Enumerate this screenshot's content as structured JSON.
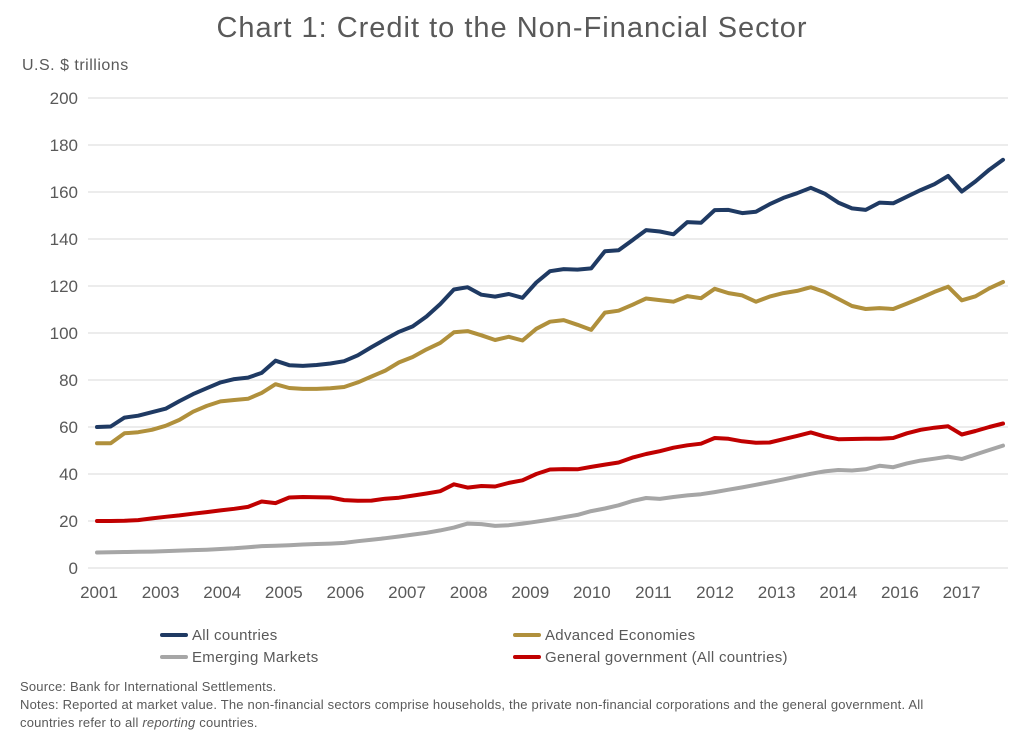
{
  "title": "Chart 1: Credit to the Non-Financial Sector",
  "y_axis_unit_label": "U.S. $ trillions",
  "colors": {
    "axis_text": "#595959",
    "gridline": "#D9D9D9",
    "background": "#FFFFFF"
  },
  "legend": {
    "items": [
      {
        "label": "All countries",
        "color": "#1F3A63"
      },
      {
        "label": "Advanced Economies",
        "color": "#B0903C"
      },
      {
        "label": "Emerging Markets",
        "color": "#A6A6A6"
      },
      {
        "label": "General government (All countries)",
        "color": "#C00000"
      }
    ]
  },
  "footer": {
    "source": "Source: Bank for International Settlements.",
    "notes_before_italic": "Notes: Reported at market value. The non-financial sectors comprise households, the private non-financial corporations and the general government. All countries refer to all ",
    "notes_italic": "reporting",
    "notes_after_italic": " countries."
  },
  "chart_data": {
    "type": "line",
    "title": "Chart 1: Credit to the Non-Financial Sector",
    "ylabel": "U.S. $ trillions",
    "xlabel": "",
    "ylim": [
      0,
      200
    ],
    "yticks": [
      0,
      20,
      40,
      60,
      80,
      100,
      120,
      140,
      160,
      180,
      200
    ],
    "grid": "horizontal",
    "legend_position": "bottom",
    "xtick_labels": [
      "2001",
      "2003",
      "2004",
      "2005",
      "2006",
      "2007",
      "2008",
      "2009",
      "2010",
      "2011",
      "2012",
      "2013",
      "2014",
      "2016",
      "2017"
    ],
    "x": [
      "2001Q1",
      "2001Q2",
      "2001Q3",
      "2001Q4",
      "2002Q1",
      "2002Q2",
      "2002Q3",
      "2002Q4",
      "2003Q1",
      "2003Q2",
      "2003Q3",
      "2003Q4",
      "2004Q1",
      "2004Q2",
      "2004Q3",
      "2004Q4",
      "2005Q1",
      "2005Q2",
      "2005Q3",
      "2005Q4",
      "2006Q1",
      "2006Q2",
      "2006Q3",
      "2006Q4",
      "2007Q1",
      "2007Q2",
      "2007Q3",
      "2007Q4",
      "2008Q1",
      "2008Q2",
      "2008Q3",
      "2008Q4",
      "2009Q1",
      "2009Q2",
      "2009Q3",
      "2009Q4",
      "2010Q1",
      "2010Q2",
      "2010Q3",
      "2010Q4",
      "2011Q1",
      "2011Q2",
      "2011Q3",
      "2011Q4",
      "2012Q1",
      "2012Q2",
      "2012Q3",
      "2012Q4",
      "2013Q1",
      "2013Q2",
      "2013Q3",
      "2013Q4",
      "2014Q1",
      "2014Q2",
      "2014Q3",
      "2014Q4",
      "2015Q1",
      "2015Q2",
      "2015Q3",
      "2015Q4",
      "2016Q1",
      "2016Q2",
      "2016Q3",
      "2016Q4",
      "2017Q1",
      "2017Q2",
      "2017Q3"
    ],
    "series": [
      {
        "name": "All countries",
        "color": "#1F3A63",
        "values": [
          60.0,
          60.2,
          64.0,
          64.8,
          66.3,
          67.8,
          71.0,
          74.0,
          76.5,
          79.0,
          80.4,
          81.0,
          83.0,
          88.2,
          86.3,
          86.0,
          86.4,
          87.0,
          88.0,
          90.5,
          94.0,
          97.3,
          100.5,
          102.8,
          107.0,
          112.3,
          118.5,
          119.5,
          116.3,
          115.5,
          116.6,
          115.0,
          121.5,
          126.3,
          127.2,
          127.0,
          127.5,
          134.8,
          135.2,
          139.5,
          143.8,
          143.2,
          142.0,
          147.2,
          146.9,
          152.3,
          152.4,
          151.0,
          151.6,
          154.8,
          157.5,
          159.5,
          161.8,
          159.3,
          155.5,
          153.0,
          152.4,
          155.5,
          155.2,
          158.0,
          160.8,
          163.3,
          166.8,
          160.2,
          164.5,
          169.5,
          173.7
        ]
      },
      {
        "name": "Advanced Economies",
        "color": "#B0903C",
        "values": [
          53.1,
          53.1,
          57.3,
          57.8,
          58.8,
          60.5,
          63.0,
          66.5,
          69.0,
          70.9,
          71.5,
          72.0,
          74.5,
          78.2,
          76.6,
          76.2,
          76.2,
          76.5,
          77.0,
          79.0,
          81.5,
          84.0,
          87.5,
          89.8,
          93.0,
          95.8,
          100.3,
          100.8,
          99.0,
          97.0,
          98.4,
          96.8,
          101.8,
          104.8,
          105.5,
          103.5,
          101.3,
          108.7,
          109.5,
          112.0,
          114.7,
          114.0,
          113.3,
          115.7,
          114.8,
          118.8,
          117.0,
          116.0,
          113.3,
          115.5,
          117.0,
          117.9,
          119.5,
          117.5,
          114.5,
          111.5,
          110.2,
          110.6,
          110.2,
          112.5,
          114.9,
          117.5,
          119.7,
          113.9,
          115.6,
          119.0,
          121.7
        ]
      },
      {
        "name": "Emerging Markets",
        "color": "#A6A6A6",
        "values": [
          6.6,
          6.7,
          6.8,
          6.9,
          7.0,
          7.2,
          7.4,
          7.6,
          7.8,
          8.1,
          8.4,
          8.8,
          9.3,
          9.5,
          9.7,
          10.0,
          10.2,
          10.4,
          10.7,
          11.4,
          12.0,
          12.7,
          13.4,
          14.2,
          15.0,
          16.0,
          17.2,
          18.9,
          18.7,
          17.9,
          18.2,
          18.9,
          19.7,
          20.6,
          21.6,
          22.6,
          24.2,
          25.3,
          26.7,
          28.5,
          29.8,
          29.4,
          30.2,
          30.9,
          31.4,
          32.3,
          33.3,
          34.3,
          35.4,
          36.5,
          37.7,
          38.9,
          40.1,
          41.1,
          41.7,
          41.5,
          42.0,
          43.5,
          42.9,
          44.5,
          45.7,
          46.5,
          47.4,
          46.4,
          48.3,
          50.2,
          52.1
        ]
      },
      {
        "name": "General government (All countries)",
        "color": "#C00000",
        "values": [
          20.0,
          20.0,
          20.1,
          20.4,
          21.1,
          21.8,
          22.4,
          23.1,
          23.8,
          24.5,
          25.2,
          26.0,
          28.3,
          27.6,
          30.0,
          30.2,
          30.1,
          30.0,
          28.9,
          28.6,
          28.7,
          29.5,
          29.9,
          30.8,
          31.7,
          32.7,
          35.6,
          34.2,
          34.9,
          34.7,
          36.2,
          37.3,
          40.0,
          41.9,
          42.1,
          42.0,
          43.0,
          44.0,
          44.9,
          47.0,
          48.5,
          49.7,
          51.2,
          52.2,
          52.9,
          55.3,
          55.0,
          53.9,
          53.3,
          53.4,
          54.8,
          56.2,
          57.7,
          56.0,
          54.8,
          54.9,
          55.0,
          55.0,
          55.3,
          57.3,
          58.8,
          59.7,
          60.3,
          56.8,
          58.3,
          60.0,
          61.5
        ]
      }
    ]
  }
}
